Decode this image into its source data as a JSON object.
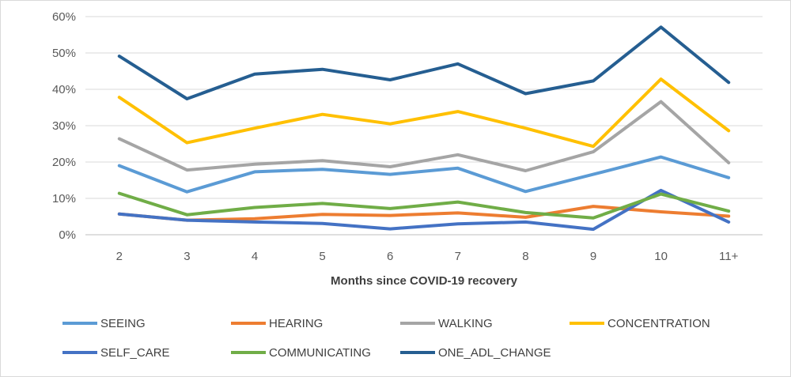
{
  "chart_data": {
    "type": "line",
    "title": "",
    "xlabel": "Months since COVID-19 recovery",
    "ylabel": "",
    "ylim": [
      0,
      60
    ],
    "y_ticks": [
      "0%",
      "10%",
      "20%",
      "30%",
      "40%",
      "50%",
      "60%"
    ],
    "categories": [
      "2",
      "3",
      "4",
      "5",
      "6",
      "7",
      "8",
      "9",
      "10",
      "11+"
    ],
    "grid": "horizontal",
    "legend_position": "bottom",
    "series": [
      {
        "name": "SEEING",
        "color": "#5B9BD5",
        "values": [
          19,
          11.8,
          17.3,
          18,
          16.6,
          18.3,
          11.9,
          16.6,
          21.4,
          15.7
        ]
      },
      {
        "name": "HEARING",
        "color": "#ED7D31",
        "values": [
          5.7,
          4,
          4.4,
          5.6,
          5.3,
          6,
          4.8,
          7.8,
          6.3,
          5.1
        ]
      },
      {
        "name": "WALKING",
        "color": "#A5A5A5",
        "values": [
          26.4,
          17.8,
          19.4,
          20.4,
          18.7,
          22,
          17.6,
          22.8,
          36.6,
          19.8
        ]
      },
      {
        "name": "CONCENTRATION",
        "color": "#FFC000",
        "values": [
          37.8,
          25.3,
          29.3,
          33.1,
          30.5,
          33.9,
          29.3,
          24.3,
          42.8,
          28.6
        ]
      },
      {
        "name": "SELF_CARE",
        "color": "#4472C4",
        "values": [
          5.7,
          4,
          3.5,
          3.1,
          1.6,
          3,
          3.5,
          1.5,
          12.2,
          3.5
        ]
      },
      {
        "name": "COMMUNICATING",
        "color": "#70AD47",
        "values": [
          11.4,
          5.5,
          7.5,
          8.6,
          7.2,
          9,
          6.1,
          4.6,
          11.2,
          6.5
        ]
      },
      {
        "name": "ONE_ADL_CHANGE",
        "color": "#255E91",
        "values": [
          49.1,
          37.4,
          44.2,
          45.5,
          42.6,
          47,
          38.8,
          42.3,
          57.1,
          41.9
        ]
      }
    ]
  }
}
